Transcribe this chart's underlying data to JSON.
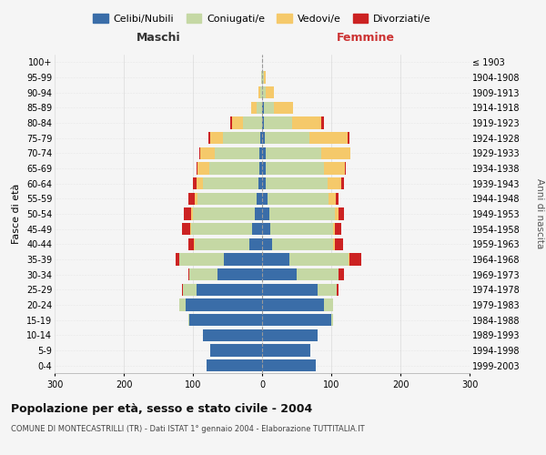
{
  "age_groups": [
    "0-4",
    "5-9",
    "10-14",
    "15-19",
    "20-24",
    "25-29",
    "30-34",
    "35-39",
    "40-44",
    "45-49",
    "50-54",
    "55-59",
    "60-64",
    "65-69",
    "70-74",
    "75-79",
    "80-84",
    "85-89",
    "90-94",
    "95-99",
    "100+"
  ],
  "birth_years": [
    "1999-2003",
    "1994-1998",
    "1989-1993",
    "1984-1988",
    "1979-1983",
    "1974-1978",
    "1969-1973",
    "1964-1968",
    "1959-1963",
    "1954-1958",
    "1949-1953",
    "1944-1948",
    "1939-1943",
    "1934-1938",
    "1929-1933",
    "1924-1928",
    "1919-1923",
    "1914-1918",
    "1909-1913",
    "1904-1908",
    "≤ 1903"
  ],
  "males": {
    "celibi": [
      80,
      75,
      85,
      105,
      110,
      95,
      65,
      55,
      18,
      14,
      10,
      8,
      5,
      4,
      4,
      2,
      0,
      0,
      0,
      0,
      0
    ],
    "coniugati": [
      0,
      0,
      0,
      2,
      10,
      20,
      40,
      65,
      80,
      88,
      90,
      85,
      80,
      72,
      65,
      55,
      28,
      8,
      3,
      1,
      0
    ],
    "vedovi": [
      0,
      0,
      0,
      0,
      0,
      0,
      0,
      0,
      1,
      2,
      3,
      5,
      10,
      18,
      20,
      18,
      15,
      8,
      2,
      0,
      0
    ],
    "divorziati": [
      0,
      0,
      0,
      0,
      0,
      1,
      2,
      5,
      8,
      12,
      10,
      8,
      5,
      1,
      2,
      2,
      3,
      0,
      0,
      0,
      0
    ]
  },
  "females": {
    "nubili": [
      78,
      70,
      80,
      100,
      90,
      80,
      50,
      40,
      15,
      12,
      10,
      8,
      5,
      5,
      5,
      4,
      2,
      2,
      0,
      0,
      0
    ],
    "coniugate": [
      0,
      0,
      0,
      2,
      12,
      28,
      60,
      85,
      88,
      90,
      95,
      88,
      90,
      85,
      80,
      65,
      42,
      15,
      5,
      2,
      0
    ],
    "vedove": [
      0,
      0,
      0,
      0,
      0,
      0,
      0,
      1,
      2,
      3,
      5,
      10,
      20,
      30,
      42,
      55,
      42,
      28,
      12,
      3,
      0
    ],
    "divorziate": [
      0,
      0,
      0,
      0,
      1,
      2,
      8,
      18,
      12,
      10,
      8,
      5,
      3,
      1,
      1,
      2,
      3,
      0,
      0,
      0,
      0
    ]
  },
  "colors": {
    "celibi": "#3a6da8",
    "coniugati": "#c5d8a4",
    "vedovi": "#f5c96a",
    "divorziati": "#cc2222"
  },
  "legend_labels": [
    "Celibi/Nubili",
    "Coniugati/e",
    "Vedovi/e",
    "Divorziati/e"
  ],
  "xlim": 300,
  "title": "Popolazione per età, sesso e stato civile - 2004",
  "subtitle": "COMUNE DI MONTECASTRILLI (TR) - Dati ISTAT 1° gennaio 2004 - Elaborazione TUTTITALIA.IT",
  "ylabel_left": "Fasce di età",
  "ylabel_right": "Anni di nascita",
  "xlabel_left": "Maschi",
  "xlabel_right": "Femmine",
  "bg_color": "#f5f5f5",
  "grid_color": "#cccccc"
}
